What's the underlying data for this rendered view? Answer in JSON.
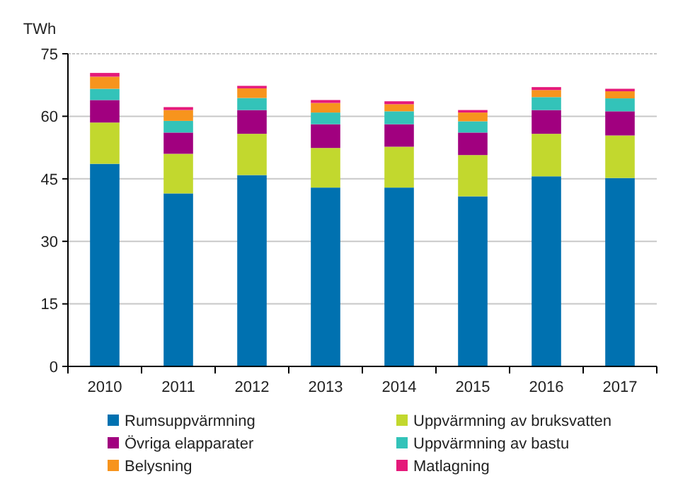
{
  "chart_data": {
    "type": "bar",
    "stacked": true,
    "ylabel": "TWh",
    "categories": [
      "2010",
      "2011",
      "2012",
      "2013",
      "2014",
      "2015",
      "2016",
      "2017"
    ],
    "series": [
      {
        "name": "Rumsuppvärmning",
        "color": "#0071b0",
        "values": [
          48.6,
          41.5,
          45.9,
          42.9,
          42.9,
          40.8,
          45.6,
          45.2
        ]
      },
      {
        "name": "Uppvärmning av bruksvatten",
        "color": "#c2d82e",
        "values": [
          9.9,
          9.5,
          9.9,
          9.5,
          9.8,
          9.9,
          10.2,
          10.2
        ]
      },
      {
        "name": "Övriga elapparater",
        "color": "#a1007f",
        "values": [
          5.4,
          5.1,
          5.7,
          5.7,
          5.4,
          5.4,
          5.7,
          5.8
        ]
      },
      {
        "name": "Uppvärmning av bastu",
        "color": "#33c3b9",
        "values": [
          2.7,
          2.8,
          2.9,
          2.8,
          3.1,
          2.7,
          3.1,
          3.1
        ]
      },
      {
        "name": "Belysning",
        "color": "#f7941d",
        "values": [
          2.9,
          2.6,
          2.3,
          2.3,
          1.7,
          2.1,
          1.7,
          1.7
        ]
      },
      {
        "name": "Matlagning",
        "color": "#e5197a",
        "values": [
          0.9,
          0.7,
          0.6,
          0.7,
          0.7,
          0.6,
          0.7,
          0.6
        ]
      }
    ],
    "ylim": [
      0,
      75
    ],
    "yticks": [
      0,
      15,
      30,
      45,
      60,
      75
    ],
    "grid": "y",
    "legend": "bottom"
  }
}
